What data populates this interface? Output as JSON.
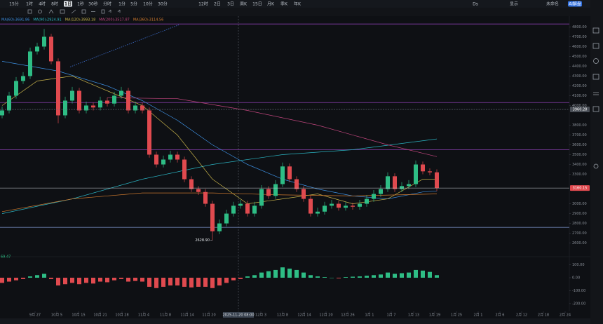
{
  "toolbar": {
    "intervals": [
      "15分",
      "1时",
      "4时",
      "8时",
      "1日",
      "1秒",
      "30秒",
      "分时",
      "1分",
      "5分",
      "10分",
      "30分",
      "12时",
      "2日",
      "3日",
      "周K",
      "15日",
      "月K",
      "季K",
      "年K"
    ],
    "selected": 4,
    "right": [
      "Ds",
      "显示",
      "未命名",
      "AI解盘"
    ]
  },
  "chart_data": {
    "type": "candlestick",
    "up_color": "#2ebd85",
    "down_color": "#e04a4f",
    "candles": [
      [
        3900,
        3990,
        3870,
        3950
      ],
      [
        3950,
        4140,
        3920,
        4100
      ],
      [
        4100,
        4290,
        4070,
        4250
      ],
      [
        4250,
        4340,
        4220,
        4300
      ],
      [
        4300,
        4590,
        4270,
        4550
      ],
      [
        4550,
        4640,
        4520,
        4600
      ],
      [
        4600,
        4780,
        4570,
        4700
      ],
      [
        4700,
        4730,
        4420,
        4450
      ],
      [
        4450,
        4480,
        3820,
        3900
      ],
      [
        3900,
        4090,
        3870,
        4050
      ],
      [
        4050,
        4190,
        4020,
        4150
      ],
      [
        4150,
        4180,
        3920,
        3950
      ],
      [
        3950,
        4040,
        3920,
        4000
      ],
      [
        4000,
        4030,
        3950,
        3980
      ],
      [
        3980,
        4090,
        3950,
        4050
      ],
      [
        4050,
        4080,
        3990,
        4020
      ],
      [
        4020,
        4140,
        3990,
        4100
      ],
      [
        4100,
        4190,
        4070,
        4150
      ],
      [
        4150,
        4180,
        3920,
        3950
      ],
      [
        3950,
        4040,
        3920,
        4000
      ],
      [
        4000,
        4030,
        3920,
        3950
      ],
      [
        3950,
        3980,
        3470,
        3500
      ],
      [
        3500,
        3530,
        3370,
        3400
      ],
      [
        3400,
        3490,
        3370,
        3450
      ],
      [
        3450,
        3540,
        3420,
        3500
      ],
      [
        3500,
        3530,
        3420,
        3450
      ],
      [
        3450,
        3480,
        3220,
        3250
      ],
      [
        3250,
        3280,
        3120,
        3150
      ],
      [
        3150,
        3180,
        3090,
        3120
      ],
      [
        3120,
        3150,
        2970,
        3000
      ],
      [
        3000,
        3030,
        2628.9,
        2720
      ],
      [
        2720,
        2840,
        2690,
        2800
      ],
      [
        2800,
        2940,
        2770,
        2900
      ],
      [
        2900,
        3020,
        2870,
        2980
      ],
      [
        2980,
        3040,
        2950,
        3000
      ],
      [
        3000,
        3030,
        2870,
        2900
      ],
      [
        2900,
        3020,
        2870,
        2980
      ],
      [
        2980,
        3190,
        2950,
        3150
      ],
      [
        3150,
        3180,
        3050,
        3080
      ],
      [
        3080,
        3240,
        3050,
        3200
      ],
      [
        3200,
        3420,
        3170,
        3380
      ],
      [
        3380,
        3410,
        3220,
        3250
      ],
      [
        3250,
        3280,
        3120,
        3150
      ],
      [
        3150,
        3180,
        3020,
        3050
      ],
      [
        3050,
        3080,
        2870,
        2900
      ],
      [
        2900,
        2960,
        2870,
        2920
      ],
      [
        2920,
        3020,
        2890,
        2980
      ],
      [
        2980,
        3040,
        2950,
        3000
      ],
      [
        3000,
        3030,
        2930,
        2960
      ],
      [
        2960,
        3020,
        2930,
        2980
      ],
      [
        2980,
        3010,
        2940,
        2970
      ],
      [
        2970,
        3040,
        2940,
        3000
      ],
      [
        3000,
        3090,
        2970,
        3050
      ],
      [
        3050,
        3140,
        3020,
        3100
      ],
      [
        3100,
        3190,
        3070,
        3150
      ],
      [
        3150,
        3320,
        3120,
        3280
      ],
      [
        3280,
        3310,
        3120,
        3150
      ],
      [
        3150,
        3220,
        3120,
        3180
      ],
      [
        3180,
        3240,
        3150,
        3200
      ],
      [
        3200,
        3440,
        3170,
        3400
      ],
      [
        3400,
        3430,
        3300,
        3330
      ],
      [
        3330,
        3360,
        3290,
        3320
      ],
      [
        3320,
        3350,
        3130,
        3160.15
      ]
    ],
    "ylim": [
      2490,
      4860
    ],
    "yticks": [
      {
        "value": 4800,
        "label": "4800.00"
      },
      {
        "value": 4700,
        "label": "4700.00"
      },
      {
        "value": 4600,
        "label": "4600.00"
      },
      {
        "value": 4500,
        "label": "4500.00"
      },
      {
        "value": 4400,
        "label": "4400.00"
      },
      {
        "value": 4300,
        "label": "4300.00"
      },
      {
        "value": 4200,
        "label": "4200.00"
      },
      {
        "value": 4100,
        "label": "4100.00"
      },
      {
        "value": 4000,
        "label": "4000.00"
      },
      {
        "value": 3800,
        "label": "3800.00"
      },
      {
        "value": 3700,
        "label": "3700.00"
      },
      {
        "value": 3600,
        "label": "3600.00"
      },
      {
        "value": 3500,
        "label": "3500.00"
      },
      {
        "value": 3400,
        "label": "3400.00"
      },
      {
        "value": 3300,
        "label": "3300.00"
      },
      {
        "value": 3000,
        "label": "3000.00"
      },
      {
        "value": 2900,
        "label": "2900.00"
      },
      {
        "value": 2800,
        "label": "2800.00"
      },
      {
        "value": 2700,
        "label": "2700.00"
      },
      {
        "value": 2600,
        "label": "2600.00"
      }
    ],
    "xlim": [
      -0.3,
      80.9
    ],
    "xticks": [
      {
        "value": 4.7,
        "label": "9月 27"
      },
      {
        "value": 7.8,
        "label": "10月 5"
      },
      {
        "value": 10.9,
        "label": "10月 15"
      },
      {
        "value": 14,
        "label": "10月 21"
      },
      {
        "value": 17.1,
        "label": "10月 28"
      },
      {
        "value": 20.2,
        "label": "11月 4"
      },
      {
        "value": 23.3,
        "label": "11月 8"
      },
      {
        "value": 26.4,
        "label": "11月 14"
      },
      {
        "value": 29.5,
        "label": "11月 20"
      },
      {
        "value": 36.9,
        "label": "12月 3"
      },
      {
        "value": 40,
        "label": "12月 8"
      },
      {
        "value": 43.1,
        "label": "12月 14"
      },
      {
        "value": 46.2,
        "label": "12月 20"
      },
      {
        "value": 49.3,
        "label": "12月 26"
      },
      {
        "value": 52.4,
        "label": "1月 1"
      },
      {
        "value": 55.5,
        "label": "1月 7"
      },
      {
        "value": 58.7,
        "label": "1月 13"
      },
      {
        "value": 61.7,
        "label": "1月 19"
      },
      {
        "value": 64.8,
        "label": "1月 25"
      },
      {
        "value": 67.9,
        "label": "2月 1"
      },
      {
        "value": 71,
        "label": "2月 6"
      },
      {
        "value": 74.1,
        "label": "2月 12"
      },
      {
        "value": 77.2,
        "label": "2月 18"
      },
      {
        "value": 80.3,
        "label": "2月 24"
      }
    ],
    "overlays": [
      {
        "name": "MA(60):3691.86",
        "color": "#3d8fe0",
        "x": [
          0,
          8,
          15,
          20,
          25,
          30,
          35,
          40,
          45,
          50,
          55,
          60,
          62
        ],
        "values": [
          4450,
          4350,
          4200,
          4050,
          3850,
          3600,
          3400,
          3250,
          3150,
          3080,
          3050,
          3120,
          3130
        ]
      },
      {
        "name": "MA(90):2924.91",
        "color": "#2bb5c4",
        "x": [
          0,
          10,
          20,
          30,
          40,
          50,
          62
        ],
        "values": [
          2900,
          3050,
          3250,
          3400,
          3500,
          3550,
          3660
        ]
      },
      {
        "name": "MA(120):3993.18",
        "color": "#c9b44a",
        "x": [
          0,
          5,
          10,
          15,
          20,
          25,
          30,
          35,
          40,
          45,
          50,
          55,
          60,
          62
        ],
        "values": [
          4000,
          4250,
          4300,
          4150,
          4000,
          3700,
          3250,
          3000,
          3050,
          3100,
          3000,
          3050,
          3250,
          3250
        ]
      },
      {
        "name": "MA(200):3517.87",
        "color": "#c2467e",
        "x": [
          15,
          25,
          35,
          45,
          55,
          62
        ],
        "values": [
          4080,
          4070,
          3950,
          3800,
          3600,
          3480
        ]
      },
      {
        "name": "MA(360):3114.56",
        "color": "#d07a2e",
        "x": [
          0,
          10,
          20,
          30,
          40,
          50,
          62
        ],
        "values": [
          2920,
          3050,
          3110,
          3110,
          3090,
          3080,
          3100
        ]
      }
    ],
    "trendline": {
      "color": "#3d6fd0",
      "x": [
        9.7,
        25.2
      ],
      "values": [
        4393,
        4821
      ]
    },
    "levels": [
      {
        "value": 4830,
        "color": "#8a3fb0"
      },
      {
        "value": 4030,
        "color": "#8a3fb0"
      },
      {
        "value": 3550,
        "color": "#8a3fb0"
      },
      {
        "value": 2760,
        "color": "#6d7fb0"
      }
    ],
    "price_badges": [
      {
        "value": 3960.28,
        "label": "3960.28",
        "color": "#4a4f57"
      },
      {
        "value": 3160.15,
        "label": "3160.15",
        "color": "#e04a4f"
      }
    ],
    "low_label": {
      "index": 30,
      "value": 2628.9,
      "label": "2628.90"
    },
    "crosshair": {
      "x": 33.7,
      "label": "2025-11-20 08:00"
    },
    "macd": {
      "label": "69.47",
      "values": [
        -40,
        -30,
        -20,
        -10,
        10,
        20,
        30,
        -10,
        -60,
        -50,
        -40,
        -50,
        -40,
        -45,
        -30,
        -35,
        -20,
        -10,
        -30,
        -25,
        -30,
        -70,
        -80,
        -70,
        -60,
        -60,
        -70,
        -75,
        -70,
        -70,
        -80,
        -60,
        -40,
        -20,
        -10,
        10,
        20,
        40,
        50,
        60,
        80,
        70,
        60,
        40,
        20,
        10,
        5,
        0,
        -5,
        5,
        8,
        10,
        15,
        20,
        25,
        40,
        30,
        35,
        40,
        60,
        55,
        45,
        20
      ],
      "ylim": [
        -260,
        130
      ],
      "yticks": [
        {
          "value": 100,
          "label": "100.00"
        },
        {
          "value": 0,
          "label": "0.00"
        },
        {
          "value": -100,
          "label": "-100.00"
        },
        {
          "value": -200,
          "label": "-200.00"
        }
      ]
    }
  }
}
